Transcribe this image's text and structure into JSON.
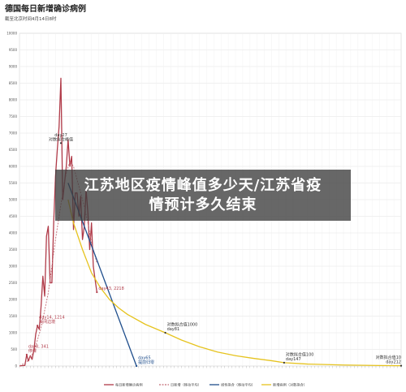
{
  "overlay": {
    "line1": "江苏地区疫情峰值多少天/江苏省疫",
    "line2": "情预计多久结束"
  },
  "chart_data": {
    "type": "line",
    "title": "德国每日新增确诊病例",
    "subtitle": "截至北京时间4月14日8时",
    "ylim": [
      0,
      10000
    ],
    "yticks": [
      0,
      500,
      1000,
      1500,
      2000,
      2500,
      3000,
      3500,
      4000,
      4500,
      5000,
      5500,
      6000,
      6500,
      7000,
      7500,
      8000,
      8500,
      9000,
      9500,
      10000
    ],
    "xlim": [
      0,
      212
    ],
    "grid": true,
    "legend_position": "bottom",
    "series": [
      {
        "name": "每日新增确诊病例",
        "color": "#b03a48",
        "style": "solid",
        "x": [
          0,
          1,
          2,
          3,
          4,
          5,
          6,
          7,
          8,
          9,
          10,
          11,
          12,
          13,
          14,
          15,
          16,
          17,
          18,
          19,
          20,
          21,
          22,
          23,
          24,
          25,
          26,
          27,
          28,
          29,
          30,
          31,
          32,
          33,
          34,
          35,
          36,
          37,
          38,
          39,
          40,
          41,
          42,
          43
        ],
        "y": [
          5,
          10,
          15,
          20,
          341,
          150,
          310,
          200,
          480,
          950,
          1214,
          1100,
          1800,
          2700,
          2100,
          3900,
          4200,
          2500,
          2500,
          4300,
          5700,
          6500,
          7200,
          8650,
          5000,
          5500,
          6000,
          6800,
          6000,
          6300,
          4100,
          5200,
          5200,
          4500,
          5100,
          3800,
          4200,
          5300,
          4600,
          3500,
          4300,
          3000,
          2600,
          2218
        ]
      },
      {
        "name": "日新增（移动平均）",
        "color": "#c46a74",
        "style": "dashed",
        "x": [
          0,
          4,
          8,
          12,
          16,
          20,
          24,
          26,
          28,
          30,
          32,
          34,
          36,
          38,
          40,
          43
        ],
        "y": [
          5,
          120,
          420,
          1150,
          2200,
          3800,
          5200,
          5800,
          6150,
          6000,
          5600,
          5200,
          4800,
          4300,
          3700,
          3100
        ]
      },
      {
        "name": "线性拟合（移动平均）",
        "color": "#1f4e8c",
        "style": "solid",
        "x": [
          27,
          65
        ],
        "y": [
          5500,
          0
        ]
      },
      {
        "name": "新增病例（对数拟合）",
        "color": "#e6c31e",
        "style": "solid",
        "x": [
          27,
          30,
          35,
          40,
          45,
          50,
          55,
          60,
          70,
          81,
          90,
          100,
          110,
          120,
          130,
          140,
          147,
          160,
          180,
          200,
          212
        ],
        "y": [
          5000,
          4300,
          3500,
          2800,
          2350,
          2000,
          1750,
          1550,
          1250,
          1000,
          780,
          580,
          420,
          310,
          230,
          160,
          100,
          60,
          30,
          15,
          10
        ]
      }
    ],
    "annotations": [
      {
        "x": 4,
        "y": 341,
        "lines": [
          "day8, 341",
          "停课"
        ],
        "color": "#b03a48",
        "anchor": "start"
      },
      {
        "x": 10,
        "y": 1214,
        "lines": [
          "day14, 1214",
          "关闭边境"
        ],
        "color": "#b03a48",
        "anchor": "start"
      },
      {
        "x": 23,
        "y": 6700,
        "lines": [
          "day27",
          "对数拟合峰值"
        ],
        "color": "#333333",
        "anchor": "middle"
      },
      {
        "x": 43,
        "y": 2218,
        "lines": [
          "day43, 2218"
        ],
        "color": "#b03a48",
        "anchor": "start"
      },
      {
        "x": 65,
        "y": 0,
        "lines": [
          "day65",
          "提前归零"
        ],
        "color": "#1f4e8c",
        "anchor": "start"
      },
      {
        "x": 81,
        "y": 1000,
        "lines": [
          "对数拟合值1000",
          "day81"
        ],
        "color": "#333333",
        "anchor": "start"
      },
      {
        "x": 147,
        "y": 100,
        "lines": [
          "对数拟合值100",
          "day147"
        ],
        "color": "#333333",
        "anchor": "start"
      },
      {
        "x": 212,
        "y": 10,
        "lines": [
          "对数拟合值10",
          "day212"
        ],
        "color": "#333333",
        "anchor": "end"
      }
    ]
  }
}
